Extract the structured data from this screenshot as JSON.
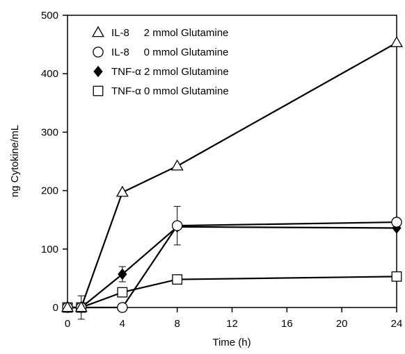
{
  "chart_data": {
    "type": "line",
    "title": "",
    "xlabel": "Time (h)",
    "ylabel": "ng Cytokine/mL",
    "xlim": [
      0,
      24
    ],
    "ylim": [
      0,
      500
    ],
    "xticks": [
      0,
      4,
      8,
      12,
      16,
      20,
      24
    ],
    "yticks": [
      0,
      100,
      200,
      300,
      400,
      500
    ],
    "x_tick_labels": [
      "0",
      "4",
      "8",
      "12",
      "16",
      "20",
      "24"
    ],
    "y_tick_labels": [
      "0",
      "100",
      "200",
      "300",
      "400",
      "500"
    ],
    "grid": false,
    "legend_position": "top-left",
    "series": [
      {
        "name": "IL-8     2 mmol Glutamine",
        "marker": "triangle-open",
        "x": [
          0,
          1,
          4,
          8,
          24
        ],
        "y": [
          0,
          0,
          197,
          242,
          453
        ],
        "err": [
          0,
          0,
          0,
          0,
          0
        ]
      },
      {
        "name": "IL-8     0 mmol Glutamine",
        "marker": "circle-open",
        "x": [
          0,
          1,
          4,
          8,
          24
        ],
        "y": [
          0,
          0,
          0,
          140,
          146
        ],
        "err": [
          0,
          0,
          0,
          0,
          0
        ]
      },
      {
        "name": "TNF-α 2 mmol Glutamine",
        "marker": "diamond-filled",
        "x": [
          0,
          1,
          4,
          8,
          24
        ],
        "y": [
          0,
          0,
          57,
          138,
          136
        ],
        "err": [
          0,
          0,
          13,
          0,
          0
        ]
      },
      {
        "name": "TNF-α 0 mmol Glutamine",
        "marker": "square-open",
        "x": [
          0,
          1,
          4,
          8,
          24
        ],
        "y": [
          0,
          0,
          26,
          48,
          53
        ],
        "err": [
          0,
          20,
          0,
          0,
          0
        ]
      }
    ],
    "extra_errorbars": [
      {
        "x": 8,
        "y": 140,
        "err": 33
      }
    ],
    "colors": {
      "line": "#000000",
      "marker_fill_open": "#ffffff",
      "marker_fill_solid": "#000000"
    }
  }
}
